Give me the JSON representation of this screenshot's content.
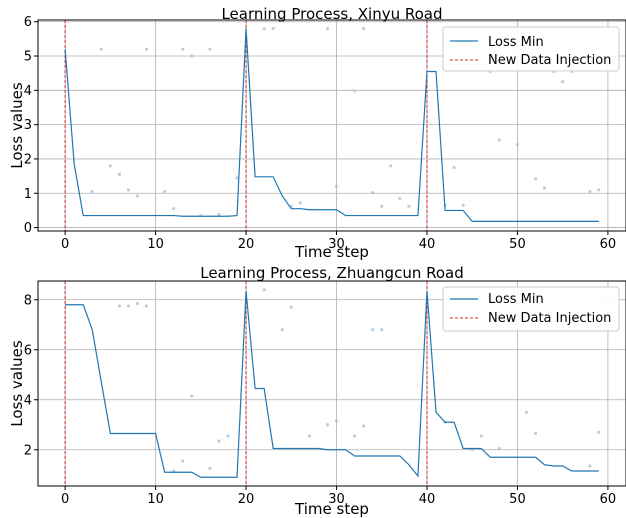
{
  "chart_data": [
    {
      "type": "line",
      "title": "Learning Process, Xinyu Road",
      "xlabel": "Time step",
      "ylabel": "Loss values",
      "xlim": [
        -3,
        62
      ],
      "ylim": [
        -0.1,
        6.05
      ],
      "xticks": [
        0,
        10,
        20,
        30,
        40,
        50,
        60
      ],
      "yticks": [
        0,
        1,
        2,
        3,
        4,
        5,
        6
      ],
      "grid": true,
      "legend": "top-right",
      "colors": {
        "line": "#1f77b4",
        "injection": "#d62728",
        "scatter": "#a8c4dc"
      },
      "series": [
        {
          "name": "Loss Min",
          "x": [
            0,
            1,
            2,
            3,
            4,
            5,
            6,
            7,
            8,
            9,
            10,
            11,
            12,
            13,
            14,
            15,
            16,
            17,
            18,
            19,
            20,
            21,
            22,
            23,
            24,
            25,
            26,
            27,
            28,
            29,
            30,
            31,
            32,
            33,
            34,
            35,
            36,
            37,
            38,
            39,
            40,
            41,
            42,
            43,
            44,
            45,
            46,
            47,
            48,
            49,
            50,
            51,
            52,
            53,
            54,
            55,
            56,
            57,
            58,
            59
          ],
          "y": [
            5.2,
            1.85,
            0.35,
            0.35,
            0.35,
            0.35,
            0.35,
            0.35,
            0.35,
            0.35,
            0.35,
            0.35,
            0.35,
            0.33,
            0.33,
            0.33,
            0.33,
            0.33,
            0.33,
            0.35,
            5.8,
            1.48,
            1.48,
            1.48,
            0.92,
            0.55,
            0.55,
            0.52,
            0.52,
            0.52,
            0.52,
            0.35,
            0.35,
            0.35,
            0.35,
            0.35,
            0.35,
            0.35,
            0.35,
            0.35,
            4.55,
            4.55,
            0.5,
            0.5,
            0.5,
            0.18,
            0.18,
            0.18,
            0.18,
            0.18,
            0.18,
            0.18,
            0.18,
            0.18,
            0.18,
            0.18,
            0.18,
            0.18,
            0.18,
            0.18
          ]
        }
      ],
      "injections": [
        0,
        20,
        40
      ],
      "scatter": {
        "x": [
          3,
          4,
          5,
          6,
          7,
          8,
          9,
          11,
          12,
          13,
          14,
          15,
          16,
          17,
          19,
          22,
          23,
          25,
          26,
          29,
          30,
          32,
          33,
          34,
          35,
          36,
          37,
          38,
          42,
          43,
          44,
          47,
          48,
          50,
          52,
          53,
          54,
          55,
          56,
          58,
          59
        ],
        "y": [
          1.05,
          5.2,
          1.8,
          1.55,
          1.1,
          0.92,
          5.2,
          1.05,
          0.55,
          5.2,
          5.0,
          0.35,
          5.2,
          0.38,
          1.45,
          5.8,
          5.8,
          0.62,
          0.72,
          5.8,
          1.2,
          3.98,
          5.8,
          1.02,
          0.62,
          1.8,
          0.85,
          0.62,
          0.65,
          1.75,
          0.65,
          4.55,
          2.55,
          2.42,
          1.42,
          1.15,
          4.55,
          4.25,
          4.55,
          1.05,
          1.1
        ]
      }
    },
    {
      "type": "line",
      "title": "Learning Process, Zhuangcun Road",
      "xlabel": "Time step",
      "ylabel": "Loss values",
      "xlim": [
        -3,
        62
      ],
      "ylim": [
        0.55,
        8.75
      ],
      "xticks": [
        0,
        10,
        20,
        30,
        40,
        50,
        60
      ],
      "yticks": [
        2,
        4,
        6,
        8
      ],
      "grid": true,
      "legend": "top-right",
      "colors": {
        "line": "#1f77b4",
        "injection": "#d62728",
        "scatter": "#a8c4dc"
      },
      "series": [
        {
          "name": "Loss Min",
          "x": [
            0,
            1,
            2,
            3,
            4,
            5,
            6,
            7,
            8,
            9,
            10,
            11,
            12,
            13,
            14,
            15,
            16,
            17,
            18,
            19,
            20,
            21,
            22,
            23,
            24,
            25,
            26,
            27,
            28,
            29,
            30,
            31,
            32,
            33,
            34,
            35,
            36,
            37,
            38,
            39,
            40,
            41,
            42,
            43,
            44,
            45,
            46,
            47,
            48,
            49,
            50,
            51,
            52,
            53,
            54,
            55,
            56,
            57,
            58,
            59
          ],
          "y": [
            7.8,
            7.8,
            7.8,
            6.8,
            4.7,
            2.65,
            2.65,
            2.65,
            2.65,
            2.65,
            2.65,
            1.1,
            1.1,
            1.1,
            1.1,
            0.9,
            0.9,
            0.9,
            0.9,
            0.9,
            8.35,
            4.45,
            4.45,
            2.05,
            2.05,
            2.05,
            2.05,
            2.05,
            2.05,
            2.0,
            2.0,
            2.0,
            1.75,
            1.75,
            1.75,
            1.75,
            1.75,
            1.75,
            1.4,
            0.95,
            8.35,
            3.5,
            3.1,
            3.1,
            2.05,
            2.05,
            2.05,
            1.7,
            1.7,
            1.7,
            1.7,
            1.7,
            1.7,
            1.4,
            1.35,
            1.35,
            1.15,
            1.15,
            1.15,
            1.15
          ]
        }
      ],
      "injections": [
        0,
        20,
        40
      ],
      "scatter": {
        "x": [
          6,
          7,
          8,
          9,
          12,
          13,
          14,
          16,
          17,
          18,
          22,
          24,
          25,
          27,
          29,
          30,
          32,
          33,
          34,
          35,
          42,
          45,
          46,
          48,
          51,
          52,
          58,
          59
        ],
        "y": [
          7.75,
          7.75,
          7.85,
          7.75,
          1.15,
          1.55,
          4.15,
          1.25,
          2.35,
          2.55,
          8.4,
          6.8,
          7.7,
          2.55,
          3.0,
          3.15,
          2.55,
          2.95,
          6.8,
          6.8,
          3.1,
          2.0,
          2.55,
          2.05,
          3.5,
          2.65,
          1.35,
          2.7
        ]
      }
    }
  ]
}
